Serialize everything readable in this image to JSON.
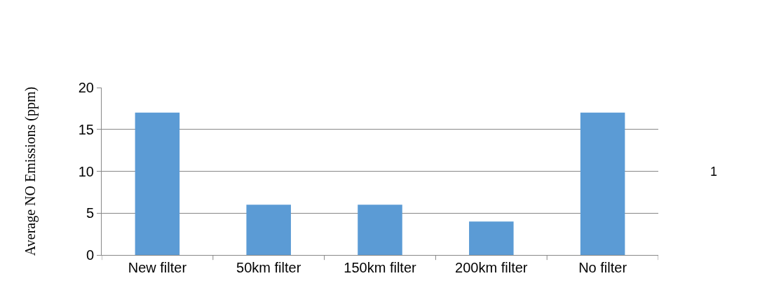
{
  "chart_data": {
    "type": "bar",
    "ylabel": "Average NO Emissions (ppm)",
    "categories": [
      "New filter",
      "50km filter",
      "150km filter",
      "200km filter",
      "No filter"
    ],
    "values": [
      17,
      6,
      6,
      4,
      17
    ],
    "color": "#5b9bd5",
    "ylim": [
      0,
      20
    ],
    "yticks": [
      0,
      5,
      10,
      15,
      20
    ],
    "grid": "y",
    "annotations": [
      "1"
    ]
  }
}
